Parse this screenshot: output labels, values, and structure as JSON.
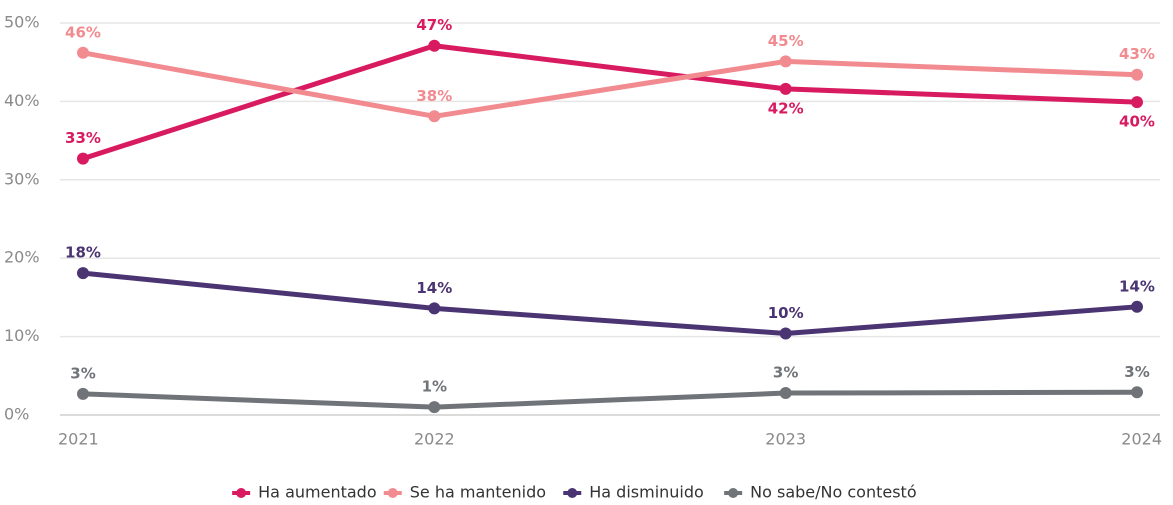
{
  "chart_data": {
    "type": "line",
    "categories": [
      "2021",
      "2022",
      "2023",
      "2024"
    ],
    "series": [
      {
        "name": "Ha aumentado",
        "color": "#d81b60",
        "values": [
          32.7,
          47.1,
          41.6,
          39.9
        ],
        "value_labels": [
          "33%",
          "47%",
          "42%",
          "40%"
        ]
      },
      {
        "name": "Se ha mantenido",
        "color": "#f28b90",
        "values": [
          46.2,
          38.1,
          45.1,
          43.4
        ],
        "value_labels": [
          "46%",
          "38%",
          "45%",
          "43%"
        ]
      },
      {
        "name": "Ha disminuido",
        "color": "#4a3472",
        "values": [
          18.1,
          13.6,
          10.4,
          13.8
        ],
        "value_labels": [
          "18%",
          "14%",
          "10%",
          "14%"
        ]
      },
      {
        "name": "No sabe/No contestó",
        "color": "#707479",
        "values": [
          2.7,
          1.0,
          2.8,
          2.9
        ],
        "value_labels": [
          "3%",
          "1%",
          "3%",
          "3%"
        ]
      }
    ],
    "ylim": [
      0,
      50
    ],
    "yticks": [
      {
        "value": 0,
        "label": "0%"
      },
      {
        "value": 10,
        "label": "10%"
      },
      {
        "value": 20,
        "label": "20%"
      },
      {
        "value": 30,
        "label": "30%"
      },
      {
        "value": 40,
        "label": "40%"
      },
      {
        "value": 50,
        "label": "50%"
      }
    ],
    "grid": true,
    "legend": "bottom"
  }
}
